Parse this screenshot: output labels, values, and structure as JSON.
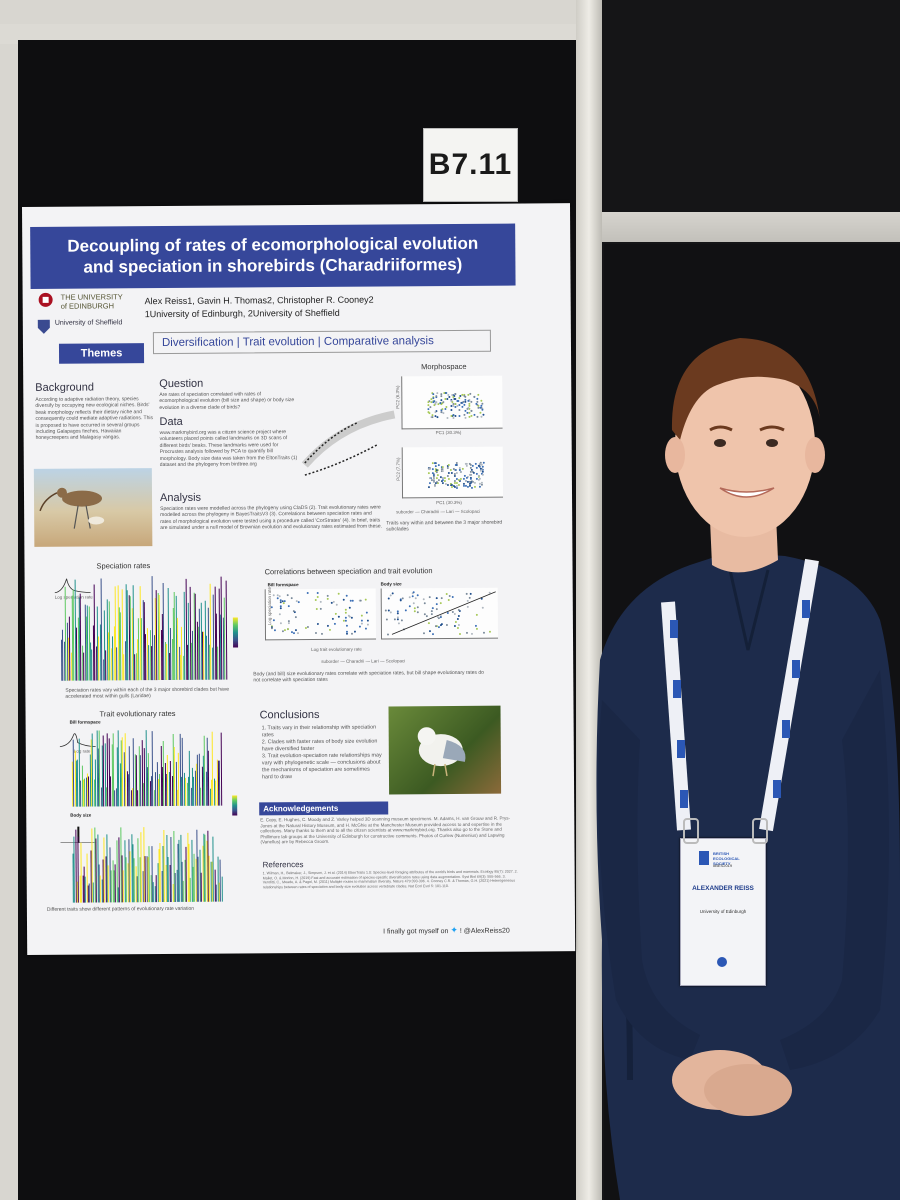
{
  "board_label": "B7.11",
  "poster": {
    "title_line1": "Decoupling of rates of ecomorphological evolution",
    "title_line2": "and speciation in shorebirds (Charadriiformes)",
    "uni1": "THE UNIVERSITY of EDINBURGH",
    "uni2": "University of Sheffield",
    "authors": "Alex Reiss1, Gavin H. Thomas2, Christopher R. Cooney2",
    "affiliations": "1University of Edinburgh, 2University of Sheffield",
    "themes_label": "Themes",
    "themes": "Diversification | Trait evolution | Comparative analysis",
    "background_heading": "Background",
    "background_text": "According to adaptive radiation theory, species diversify by occupying new ecological niches. Birds' beak morphology reflects their dietary niche and consequently could mediate adaptive radiations. This is proposed to have occurred in several groups including Galapagos finches, Hawaiian honeycreepers and Malagasy vangas.",
    "question_heading": "Question",
    "question_text": "Are rates of speciation correlated with rates of ecomorphological evolution (bill size and shape) or body size evolution in a diverse clade of birds?",
    "data_heading": "Data",
    "data_text": "www.markmybird.org was a citizen science project where volunteers placed points called landmarks on 3D scans of different birds' beaks. These landmarks were used for Procrustes analysis followed by PCA to quantify bill morphology. Body size data was taken from the EltonTraits (1) dataset and the phylogeny from birdtree.org",
    "morphospace_heading": "Morphospace",
    "morpho_pc1_a": "PC1 (30.3%)",
    "morpho_pc2": "PC2 (6.3%)",
    "morpho_pc1_b": "PC1 (30.3%)",
    "morpho_pc2b": "PC2 (7.7%)",
    "morpho_legend": "suborder — Charadrii — Lari — Scolopaci",
    "morpho_caption": "Traits vary within and between the 3 major shorebird subclades",
    "analysis_heading": "Analysis",
    "analysis_text": "Speciation rates were modelled across the phylogeny using ClaDS (2). Trait evolutionary rates were modelled across the phylogeny in BayesTraitsV3 (3). Correlations between speciation rates and rates of morphological evolution were tested using a procedure called 'CorStrates' (4). In brief, traits are simulated under a null model of Brownian evolution and evolutionary rates estimated from these.",
    "speciation_heading": "Speciation rates",
    "log_speciation_rate": "Log speciation rate",
    "speciation_caption": "Speciation rates vary within each of the 3 major shorebird clades but have accelerated most within gulls (Laridae)",
    "correlations_heading": "Correlations between speciation and trait evolution",
    "bill_formspace": "Bill formspace",
    "body_size": "Body size",
    "y_axis_label": "Log speciation rate",
    "x_axis_label": "Log trait evolutionary rate",
    "suborder_legend": "suborder — Charadrii — Lari — Scolopaci",
    "correlation_caption": "Body (and bill) size evolutionary rates correlate with speciation rates, but bill shape evolutionary rates do not correlate with speciation rates",
    "trait_heading": "Trait evolutionary rates",
    "trait_bill": "Bill formspace",
    "log_rate": "Log rate",
    "trait_body": "Body size",
    "trait_caption": "Different traits show different patterns of evolutionary rate variation",
    "conclusions_heading": "Conclusions",
    "conclusions": [
      "1. Traits vary in their relationship with speciation rates",
      "2. Clades with faster rates of body size evolution have diversified faster",
      "3. Trait evolution-speciation rate relationships may vary with phylogenetic scale — conclusions about the mechanisms of speciation are sometimes hard to draw"
    ],
    "ack_heading": "Acknowledgements",
    "ack_text": "E. Copy, E. Hughes, C. Moody and Z. Varley helped 3D scanning museum specimens. M. Adams, H. van Grouw and R. Prys-Jones at the Natural History Museum, and H. McGhie at the Manchester Museum provided access to and expertise in the collections. Many thanks to them and to all the citizen scientists at www.markmybird.org. Thanks also go to the Stone and Phillimore lab groups at the University of Edinburgh for constructive comments. Photos of Curlew (Numenius) and Lapwing (Vanellus) are by Rebecca Groom.",
    "references_heading": "References",
    "references": "1. Wilman, H., Belmaker, J., Simpson, J. et al. (2014) EltonTraits 1.0: Species-level foraging attributes of the world's birds and mammals. Ecology 95(7): 2027. 2. Maliet, O. & Morlon, H. (2019) Fast and accurate estimation of species-specific diversification rates using data augmentation. Syst Biol 69(3): 555-566. 3. Venditti, C., Meade, A. & Pagel, M. (2011) Multiple routes to mammalian diversity. Nature 479:393-396. 4. Cooney C.R. & Thomas, G.H. (2021) Heterogeneous relationships between rates of speciation and body size evolution across vertebrate clades. Nat Ecol Evol 5: 101-110.",
    "twitter_text": "I finally got myself on",
    "twitter_handle": "! @AlexReiss20"
  },
  "badge": {
    "org": "BRITISH ECOLOGICAL SOCIETY",
    "event": "#BES2019",
    "name": "ALEXANDER REISS",
    "institution": "University of Edinburgh"
  },
  "colors": {
    "poster_blue": "#36479a",
    "board_black": "#0e0e10",
    "shirt": "#1c2a4a",
    "lanyard_blue": "#2b57b5"
  }
}
